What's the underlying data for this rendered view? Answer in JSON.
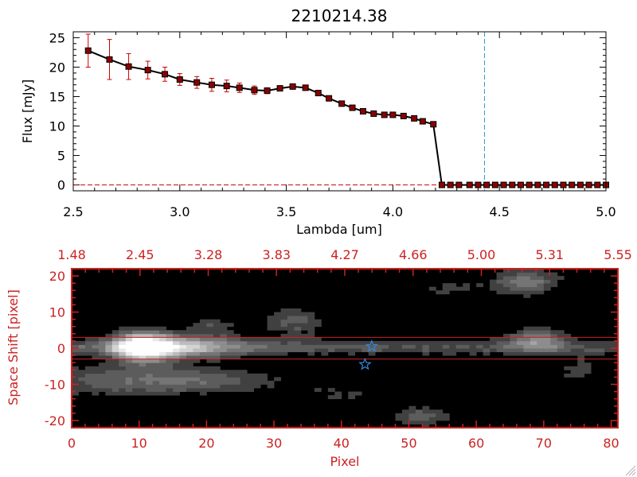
{
  "chart_data": [
    {
      "type": "line",
      "title": "2210214.38",
      "xlabel": "Lambda [um]",
      "ylabel": "Flux [mJy]",
      "xlim": [
        2.5,
        5.0
      ],
      "ylim": [
        -1,
        26
      ],
      "xticks": [
        "2.5",
        "3.0",
        "3.5",
        "4.0",
        "4.5",
        "5.0"
      ],
      "yticks": [
        "0",
        "5",
        "10",
        "15",
        "20",
        "25"
      ],
      "vline_x": 4.43,
      "colors": {
        "line": "#000000",
        "marker": "#8b0000",
        "errorbar": "#cc0000",
        "vline": "#3399cc",
        "zero_line": "#cc0000"
      },
      "grid": false,
      "series": [
        {
          "x": [
            2.57,
            2.67,
            2.76,
            2.85,
            2.93,
            3.0,
            3.08,
            3.15,
            3.22,
            3.28,
            3.35,
            3.41,
            3.47,
            3.53,
            3.59,
            3.65,
            3.7,
            3.76,
            3.81,
            3.86,
            3.91,
            3.96,
            4.0,
            4.05,
            4.1,
            4.14,
            4.19,
            4.23,
            4.27,
            4.31,
            4.36,
            4.4,
            4.44,
            4.48,
            4.52,
            4.56,
            4.6,
            4.64,
            4.68,
            4.72,
            4.76,
            4.8,
            4.84,
            4.88,
            4.92,
            4.96,
            5.0
          ],
          "y": [
            22.8,
            21.3,
            20.1,
            19.5,
            18.8,
            17.9,
            17.4,
            17.0,
            16.8,
            16.5,
            16.1,
            16.0,
            16.4,
            16.7,
            16.5,
            15.6,
            14.7,
            13.8,
            13.1,
            12.5,
            12.1,
            11.9,
            11.9,
            11.7,
            11.3,
            10.8,
            10.3,
            0.0,
            0.0,
            0.0,
            0.0,
            0.0,
            0.0,
            0.0,
            0.0,
            0.0,
            0.0,
            0.0,
            0.0,
            0.0,
            0.0,
            0.0,
            0.0,
            0.0,
            0.0,
            0.0,
            0.0
          ],
          "yerr": [
            2.8,
            3.4,
            2.2,
            1.5,
            1.2,
            1.0,
            1.0,
            1.1,
            1.0,
            0.8,
            0.7,
            0.5,
            0.4,
            0.3,
            0.3,
            0.3,
            0.3,
            0.3,
            0.3,
            0.3,
            0.3,
            0.3,
            0.3,
            0.3,
            0.3,
            0.3,
            0.3,
            0,
            0,
            0,
            0,
            0,
            0,
            0,
            0,
            0,
            0,
            0,
            0,
            0,
            0,
            0,
            0,
            0,
            0,
            0,
            0
          ]
        }
      ]
    },
    {
      "type": "heatmap",
      "xlabel": "Pixel",
      "ylabel": "Space Shift [pixel]",
      "xlim": [
        0,
        81
      ],
      "ylim": [
        -22,
        22
      ],
      "xticks": [
        "0",
        "10",
        "20",
        "30",
        "40",
        "50",
        "60",
        "70",
        "80"
      ],
      "yticks": [
        "-20",
        "-10",
        "0",
        "10",
        "20"
      ],
      "top_axis_ticks": [
        "1.48",
        "2.45",
        "3.28",
        "3.83",
        "4.27",
        "4.66",
        "5.00",
        "5.31",
        "5.55"
      ],
      "extraction_band": [
        -3,
        3
      ],
      "trace_center_y": 0,
      "markers": [
        {
          "shape": "star",
          "x": 43.5,
          "y": -4.5
        },
        {
          "shape": "star",
          "x": 44.5,
          "y": 0.5
        }
      ],
      "blobs": [
        {
          "x": 10.5,
          "y": 0.5,
          "sx": 3.0,
          "sy": 2.8,
          "v": 1.0
        },
        {
          "x": 17.0,
          "y": 0.5,
          "sx": 5.5,
          "sy": 2.4,
          "v": 0.45
        },
        {
          "x": 8.0,
          "y": -9.0,
          "sx": 9.0,
          "sy": 3.0,
          "v": 0.32
        },
        {
          "x": 22.0,
          "y": -9.0,
          "sx": 7.0,
          "sy": 2.2,
          "v": 0.22
        },
        {
          "x": 69.0,
          "y": 2.5,
          "sx": 3.0,
          "sy": 2.2,
          "v": 0.42
        },
        {
          "x": 67.5,
          "y": 18.5,
          "sx": 3.5,
          "sy": 2.5,
          "v": 0.4
        },
        {
          "x": 33.0,
          "y": 7.5,
          "sx": 3.2,
          "sy": 3.0,
          "v": 0.28
        },
        {
          "x": 21.0,
          "y": 6.5,
          "sx": 2.5,
          "sy": 2.0,
          "v": 0.2
        },
        {
          "x": 52.0,
          "y": -19.0,
          "sx": 3.0,
          "sy": 2.0,
          "v": 0.3
        },
        {
          "x": 56.0,
          "y": 16.0,
          "sx": 4.0,
          "sy": 2.5,
          "v": 0.15
        },
        {
          "x": 40.0,
          "y": -13.0,
          "sx": 6.0,
          "sy": 2.5,
          "v": 0.14
        },
        {
          "x": 75.0,
          "y": -6.0,
          "sx": 4.0,
          "sy": 3.0,
          "v": 0.15
        },
        {
          "x": 4.0,
          "y": 12.0,
          "sx": 3.0,
          "sy": 3.0,
          "v": 0.12
        }
      ],
      "trace": {
        "y": 0.3,
        "sy": 1.6,
        "v_start": 0.3,
        "v_end": 0.22
      },
      "colors": {
        "axes": "#cc2222",
        "band": "#cc2222",
        "star": "#3388dd"
      }
    }
  ]
}
